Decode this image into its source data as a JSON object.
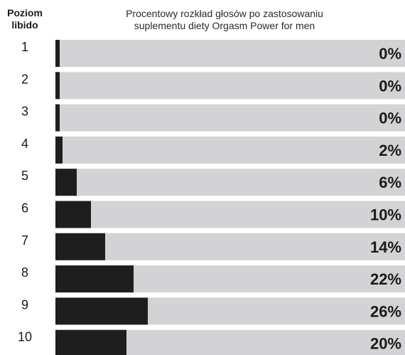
{
  "header": {
    "level_label_line1": "Poziom",
    "level_label_line2": "libido",
    "title_line1": "Procentowy rozkład głosów po zastosowaniu",
    "title_line2": "suplementu diety Orgasm Power for men"
  },
  "colors": {
    "background_bar": "#d3d3d5",
    "value_bar": "#1e1e1e",
    "text": "#1a1a1a"
  },
  "chart_data": {
    "type": "bar",
    "orientation": "horizontal",
    "title": "Procentowy rozkład głosów po zastosowaniu suplementu diety Orgasm Power for men",
    "ylabel": "Poziom libido",
    "xlabel": "",
    "categories": [
      "1",
      "2",
      "3",
      "4",
      "5",
      "6",
      "7",
      "8",
      "9",
      "10"
    ],
    "values": [
      0,
      0,
      0,
      2,
      6,
      10,
      14,
      22,
      26,
      20
    ],
    "value_labels": [
      "0%",
      "0%",
      "0%",
      "2%",
      "6%",
      "10%",
      "14%",
      "22%",
      "26%",
      "20%"
    ],
    "unit": "%",
    "xlim": [
      0,
      100
    ],
    "grid": false,
    "legend": "none"
  }
}
